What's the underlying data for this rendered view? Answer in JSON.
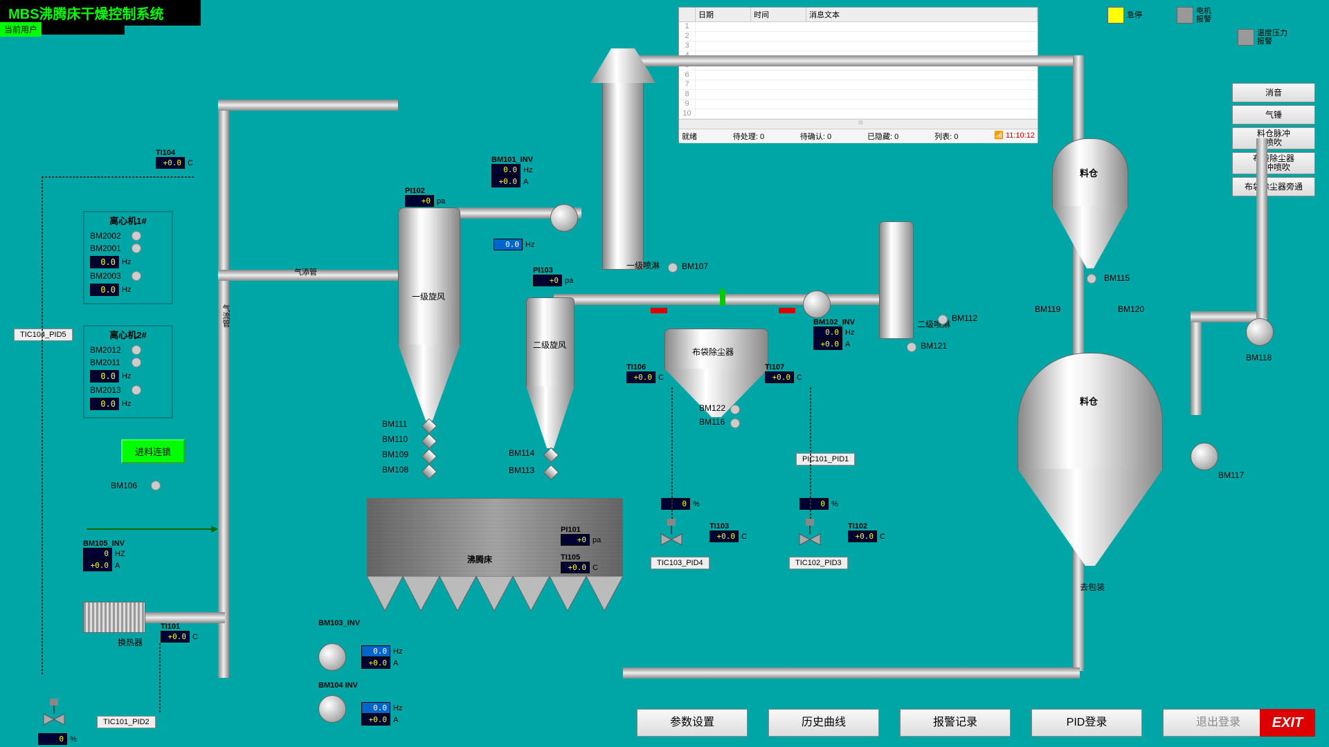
{
  "title": "MBS沸腾床干燥控制系统",
  "user_label": "当前用户",
  "alarms": {
    "estop": "急停",
    "motor": "电机\n报警",
    "temp": "温度压力\n报警"
  },
  "side_buttons": [
    "消音",
    "气锤",
    "料仓脉冲\n喷吹",
    "布袋除尘器\n脉冲喷吹",
    "布袋除尘器旁通"
  ],
  "bottom_buttons": [
    "参数设置",
    "历史曲线",
    "报警记录",
    "PID登录",
    "退出登录"
  ],
  "exit": "EXIT",
  "msg": {
    "cols": {
      "date": "日期",
      "time": "时间",
      "text": "消息文本"
    },
    "rows": [
      1,
      2,
      3,
      4,
      5,
      6,
      7,
      8,
      9,
      10
    ],
    "ready": "就绪",
    "pending": "待处理: 0",
    "ack": "待确认: 0",
    "hidden": "已隐藏: 0",
    "list": "列表: 0",
    "clock": "11:10:12"
  },
  "pid_buttons": {
    "tic104": "TIC104_PID5",
    "pic101": "PIC101_PID1",
    "tic103": "TIC103_PID4",
    "tic102": "TIC102_PID3",
    "tic101": "TIC101_PID2"
  },
  "panels": {
    "c1": {
      "title": "离心机1#",
      "items": [
        "BM2002",
        "BM2001",
        "BM2003"
      ]
    },
    "c2": {
      "title": "离心机2#",
      "items": [
        "BM2012",
        "BM2011",
        "BM2013"
      ]
    },
    "feed_btn": "进料连锁"
  },
  "tags": {
    "ti104": {
      "name": "TI104",
      "val": "+0.0",
      "unit": "C"
    },
    "pi102": {
      "name": "PI102",
      "val": "+0",
      "unit": "pa"
    },
    "pi103": {
      "name": "PI103",
      "val": "+0",
      "unit": "pa"
    },
    "pi101": {
      "name": "PI101",
      "val": "+0",
      "unit": "pa"
    },
    "ti105": {
      "name": "TI105",
      "val": "+0.0",
      "unit": "C"
    },
    "ti106": {
      "name": "TI106",
      "val": "+0.0",
      "unit": "C"
    },
    "ti107": {
      "name": "TI107",
      "val": "+0.0",
      "unit": "C"
    },
    "ti103": {
      "name": "TI103",
      "val": "+0.0",
      "unit": "C"
    },
    "ti102": {
      "name": "TI102",
      "val": "+0.0",
      "unit": "C"
    },
    "ti101": {
      "name": "TI101",
      "val": "+0.0",
      "unit": "C"
    },
    "bm101": {
      "name": "BM101_INV",
      "hz": "0.0",
      "a": "+0.0"
    },
    "bm102": {
      "name": "BM102_INV",
      "hz": "0.0",
      "a": "+0.0"
    },
    "bm103": {
      "name": "BM103_INV",
      "hz": "0.0",
      "a": "+0.0"
    },
    "bm104": {
      "name": "BM104 INV",
      "hz": "0.0",
      "a": "+0.0"
    },
    "bm105": {
      "name": "BM105_INV",
      "hz": "0",
      "hzu": "HZ",
      "a": "+0.0"
    }
  },
  "labels": {
    "cyclone1": "一级旋风",
    "cyclone2": "二级旋风",
    "spray1": "一级喷淋",
    "spray2": "二级喷淋",
    "bag": "布袋除尘器",
    "bed": "沸腾床",
    "duct1": "气添管",
    "duct2": "气流管",
    "heater": "换热器",
    "silo1": "料仓",
    "silo2": "料仓",
    "pack": "去包装",
    "bm106": "BM106",
    "bm107": "BM107",
    "bm108": "BM108",
    "bm109": "BM109",
    "bm110": "BM110",
    "bm111": "BM111",
    "bm112": "BM112",
    "bm113": "BM113",
    "bm114": "BM114",
    "bm115": "BM115",
    "bm116": "BM116",
    "bm117": "BM117",
    "bm118": "BM118",
    "bm119": "BM119",
    "bm120": "BM120",
    "bm121": "BM121",
    "bm122": "BM122"
  },
  "zero_pct": "0",
  "pct": "%",
  "hz_val": "0.0",
  "hz": "Hz",
  "amp": "A"
}
